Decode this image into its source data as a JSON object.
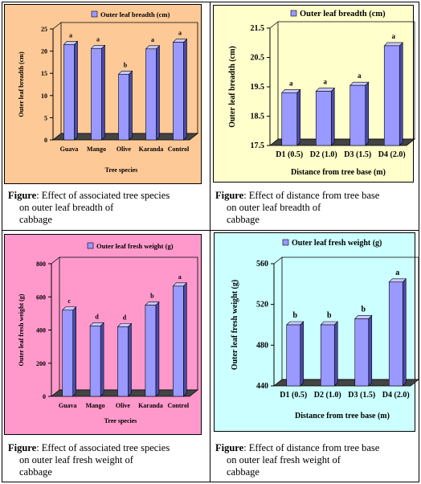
{
  "colors": {
    "bar_front": "#9999ff",
    "bar_side": "#4a4aa8",
    "bar_top": "#c8c8ff",
    "floor": "#444444"
  },
  "panels": [
    {
      "bg": "#fdc997",
      "caption": {
        "label": "Figure",
        "line1": ": Effect of associated  tree species",
        "line2": "on outer leaf breadth of",
        "line3": "cabbage"
      },
      "chart_data": {
        "type": "bar",
        "title": "Outer leaf breadth (cm)",
        "categories": [
          "Guava",
          "Mango",
          "Olive",
          "Karanda",
          "Control"
        ],
        "values": [
          21.5,
          20.6,
          14.8,
          20.5,
          22.0
        ],
        "value_labels": [
          "a",
          "a",
          "b",
          "a",
          "a"
        ],
        "ylim": [
          0,
          25
        ],
        "yticks": [
          "0",
          "5",
          "10",
          "15",
          "20",
          "25"
        ],
        "ylabel": "Outer leaf breadth (cm)",
        "xlabel": "Tree species",
        "legend": "top"
      }
    },
    {
      "bg": "#ffffcc",
      "caption": {
        "label": "Figure",
        "line1": ": Effect of distance  from tree base",
        "line2": "on outer leaf breadth of",
        "line3": "cabbage"
      },
      "chart_data": {
        "type": "bar",
        "title": "Outer leaf breadth (cm)",
        "categories": [
          "D1 (0.5)",
          "D2 (1.0)",
          "D3 (1.5)",
          "D4 (2.0)"
        ],
        "values": [
          19.3,
          19.35,
          19.55,
          20.9
        ],
        "value_labels": [
          "a",
          "a",
          "a",
          "a"
        ],
        "ylim": [
          17.5,
          21.5
        ],
        "yticks": [
          "17.5",
          "18.5",
          "19.5",
          "20.5",
          "21.5"
        ],
        "ylabel": "Outer leaf breadth (cm)",
        "xlabel": "Distance from tree base (m)",
        "legend": "top"
      }
    },
    {
      "bg": "#ff99cc",
      "caption": {
        "label": "Figure",
        "line1": ": Effect of associated  tree species",
        "line2": "on outer leaf fresh weight of",
        "line3": "cabbage"
      },
      "chart_data": {
        "type": "bar",
        "title": "Outer leaf fresh weight (g)",
        "categories": [
          "Guava",
          "Mango",
          "Olive",
          "Karanda",
          "Control"
        ],
        "values": [
          520,
          425,
          420,
          550,
          665
        ],
        "value_labels": [
          "c",
          "d",
          "d",
          "b",
          "a"
        ],
        "ylim": [
          0,
          800
        ],
        "yticks": [
          "0",
          "200",
          "400",
          "600",
          "800"
        ],
        "ylabel": "Outer leaf fresh weight (g)",
        "xlabel": "Tree species",
        "legend": "top"
      }
    },
    {
      "bg": "#ccffff",
      "caption": {
        "label": "Figure",
        "line1": ": Effect of distance  from tree base",
        "line2": "on outer leaf fresh weight of",
        "line3": "cabbage"
      },
      "chart_data": {
        "type": "bar",
        "title": "Outer leaf fresh weight (g)",
        "categories": [
          "D1 (0.5)",
          "D2 (1.0)",
          "D3 (1.5)",
          "D4 (2.0)"
        ],
        "values": [
          500,
          500,
          506,
          542
        ],
        "value_labels": [
          "b",
          "b",
          "b",
          "a"
        ],
        "ylim": [
          440,
          560
        ],
        "yticks": [
          "440",
          "480",
          "520",
          "560"
        ],
        "ylabel": "Outer leaf fresh weight (g)",
        "xlabel": "Distance from tree base (m)",
        "legend": "top"
      }
    }
  ]
}
